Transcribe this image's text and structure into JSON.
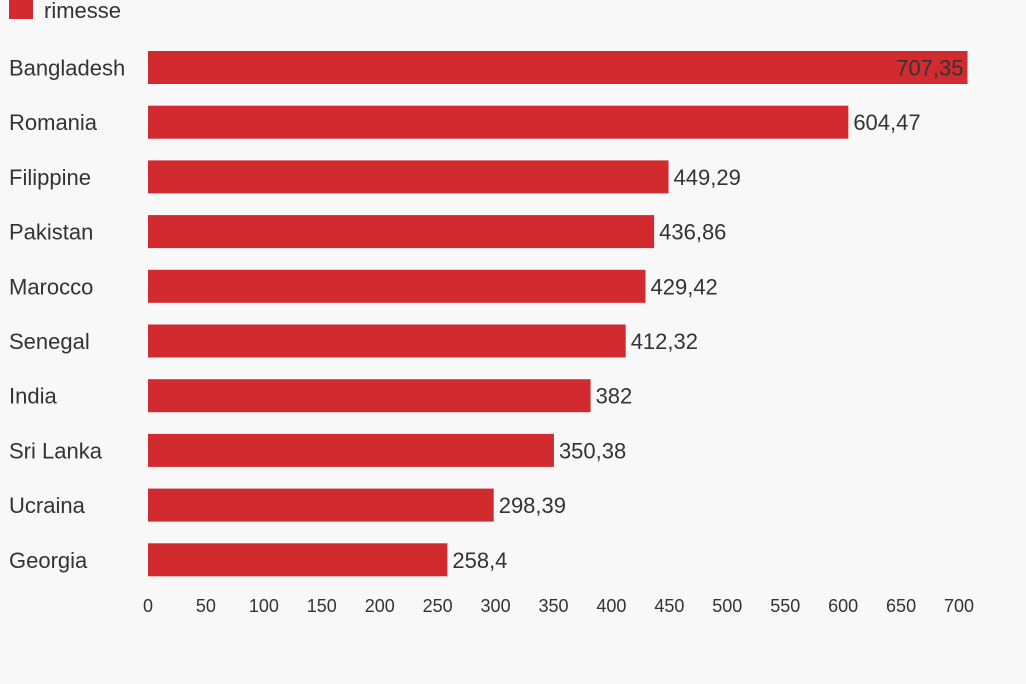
{
  "chart_data": {
    "type": "bar",
    "orientation": "horizontal",
    "series": [
      {
        "name": "rimesse",
        "color": "#d12b30"
      }
    ],
    "categories": [
      "Bangladesh",
      "Romania",
      "Filippine",
      "Pakistan",
      "Marocco",
      "Senegal",
      "India",
      "Sri Lanka",
      "Ucraina",
      "Georgia"
    ],
    "values": [
      707.35,
      604.47,
      449.29,
      436.86,
      429.42,
      412.32,
      382,
      350.38,
      298.39,
      258.4
    ],
    "value_labels": [
      "707,35",
      "604,47",
      "449,29",
      "436,86",
      "429,42",
      "412,32",
      "382",
      "350,38",
      "298,39",
      "258,4"
    ],
    "xlim": [
      0,
      700
    ],
    "x_ticks": [
      "0",
      "50",
      "100",
      "150",
      "200",
      "250",
      "300",
      "350",
      "400",
      "450",
      "500",
      "550",
      "600",
      "650",
      "700"
    ],
    "legend_position": "top-left",
    "grid": false
  }
}
